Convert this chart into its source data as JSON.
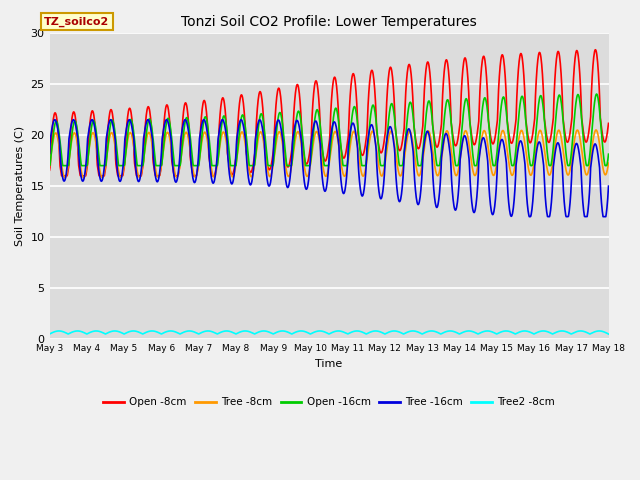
{
  "title": "Tonzi Soil CO2 Profile: Lower Temperatures",
  "xlabel": "Time",
  "ylabel": "Soil Temperatures (C)",
  "ylim": [
    0,
    30
  ],
  "bg_color": "#dcdcdc",
  "fig_color": "#f0f0f0",
  "legend_label_box": "TZ_soilco2",
  "series": {
    "open_8cm": {
      "color": "#ff0000",
      "label": "Open -8cm"
    },
    "tree_8cm": {
      "color": "#ff9900",
      "label": "Tree -8cm"
    },
    "open_16cm": {
      "color": "#00cc00",
      "label": "Open -16cm"
    },
    "tree_16cm": {
      "color": "#0000dd",
      "label": "Tree -16cm"
    },
    "tree2_8cm": {
      "color": "#00ffff",
      "label": "Tree2 -8cm"
    }
  },
  "xtick_labels": [
    "May 3",
    "May 4",
    "May 5",
    "May 6",
    "May 7",
    "May 8",
    "May 9",
    "May 10",
    "May 11",
    "May 12",
    "May 13",
    "May 14",
    "May 15",
    "May 16",
    "May 17",
    "May 18"
  ],
  "ytick_labels": [
    0,
    5,
    10,
    15,
    20,
    25,
    30
  ]
}
